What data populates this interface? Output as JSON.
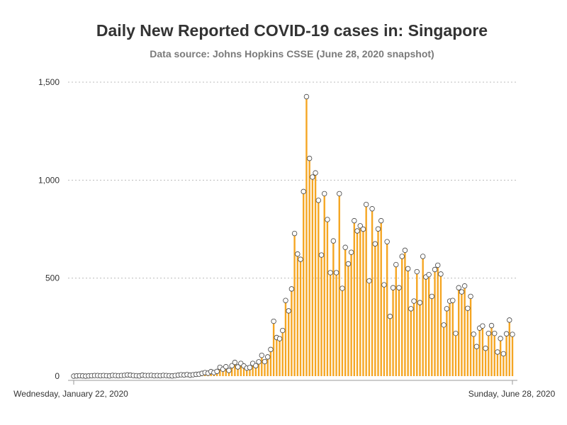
{
  "chart_data": {
    "type": "bar",
    "title": "Daily New Reported COVID-19 cases in: Singapore",
    "subtitle": "Data source: Johns Hopkins CSSE (June 28, 2020 snapshot)",
    "xlabel": "",
    "ylabel": "",
    "ylim": [
      0,
      1500
    ],
    "yticks": [
      0,
      500,
      1000,
      1500
    ],
    "ytick_labels": [
      "0",
      "500",
      "1,000",
      "1,500"
    ],
    "x_first_label": "Wednesday, January 22, 2020",
    "x_last_label": "Sunday, June 28, 2020",
    "x_start": "2020-01-22",
    "x_end": "2020-06-28",
    "grid": "horizontal dotted",
    "legend": "none",
    "colors": {
      "bar": "#f5a623",
      "marker_fill": "#ffffff",
      "marker_stroke": "#444444",
      "axis": "#999999",
      "grid": "#bbbbbb"
    },
    "values": [
      0,
      1,
      2,
      1,
      0,
      1,
      2,
      3,
      3,
      2,
      3,
      2,
      1,
      4,
      3,
      2,
      3,
      4,
      6,
      5,
      3,
      2,
      1,
      5,
      3,
      3,
      4,
      2,
      3,
      2,
      4,
      3,
      2,
      1,
      3,
      5,
      7,
      6,
      8,
      5,
      7,
      9,
      10,
      14,
      18,
      15,
      23,
      18,
      24,
      45,
      35,
      48,
      29,
      53,
      70,
      47,
      65,
      52,
      41,
      44,
      65,
      53,
      73,
      106,
      74,
      98,
      136,
      280,
      197,
      191,
      233,
      386,
      333,
      445,
      728,
      623,
      596,
      942,
      1426,
      1111,
      1016,
      1037,
      897,
      618,
      931,
      799,
      528,
      690,
      528,
      931,
      448,
      657,
      573,
      632,
      793,
      741,
      767,
      750,
      876,
      486,
      854,
      675,
      751,
      793,
      466,
      686,
      305,
      451,
      569,
      451,
      611,
      642,
      548,
      344,
      383,
      533,
      375,
      611,
      506,
      518,
      407,
      544,
      566,
      521,
      261,
      344,
      383,
      386,
      218,
      451,
      430,
      460,
      346,
      407,
      214,
      151,
      245,
      256,
      142,
      218,
      258,
      218,
      123,
      192,
      114,
      216,
      286,
      213
    ]
  }
}
